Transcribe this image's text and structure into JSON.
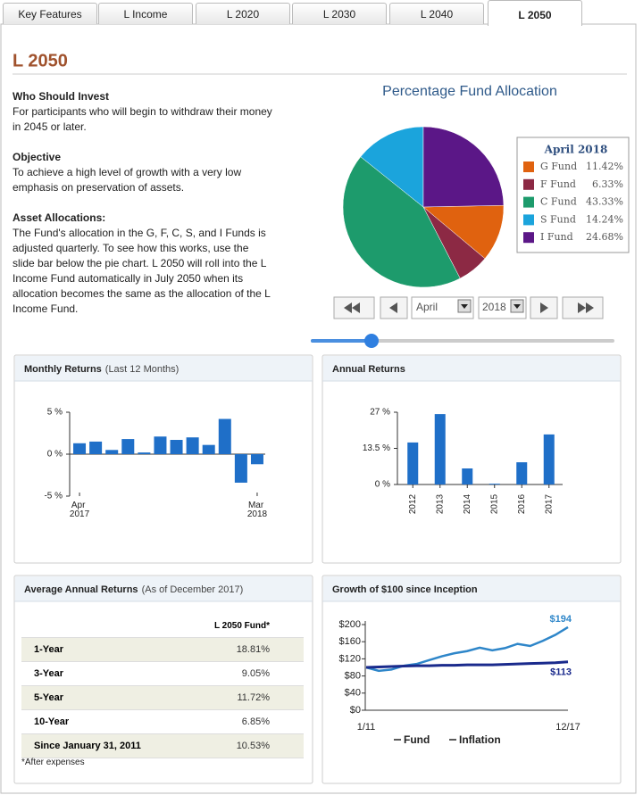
{
  "tabs": [
    "Key Features",
    "L Income",
    "L 2020",
    "L 2030",
    "L 2040",
    "L 2050"
  ],
  "page_title": "L 2050",
  "sections": [
    {
      "heading": "Who Should Invest",
      "text": "For participants who will begin to withdraw their money in 2045 or later."
    },
    {
      "heading": "Objective",
      "text": "To achieve a high level of growth with a very low emphasis on preservation of assets."
    },
    {
      "heading": "Asset Allocations:",
      "text": "The Fund's allocation in the G, F, C, S, and I Funds is adjusted quarterly. To see how this works, use the slide bar below the pie chart. L 2050 will roll into the L Income Fund automatically in July 2050 when its allocation becomes the same as the allocation of the L Income Fund."
    }
  ],
  "controls": {
    "month": "April",
    "year": "2018"
  },
  "chart_data": [
    {
      "type": "pie",
      "title": "Percentage Fund Allocation",
      "legend_title": "April 2018",
      "categories": [
        "G Fund",
        "F Fund",
        "C Fund",
        "S Fund",
        "I Fund"
      ],
      "values": [
        11.42,
        6.33,
        43.33,
        14.24,
        24.68
      ],
      "value_labels": [
        "11.42%",
        "6.33%",
        "43.33%",
        "14.24%",
        "24.68%"
      ],
      "colors": [
        "#e0620f",
        "#8c2944",
        "#1d9b6c",
        "#1ba4dc",
        "#5b1787"
      ]
    },
    {
      "type": "bar",
      "title": "Monthly Returns",
      "subtitle": "(Last 12 Months)",
      "categories": [
        "Apr 2017",
        null,
        null,
        null,
        null,
        null,
        null,
        null,
        null,
        null,
        null,
        "Mar 2018"
      ],
      "values": [
        1.3,
        1.5,
        0.5,
        1.8,
        0.2,
        2.1,
        1.7,
        2.0,
        1.1,
        4.2,
        -3.4,
        -1.2
      ],
      "color": "#1f6fc8",
      "ylim": [
        -5,
        5
      ],
      "yticks": [
        {
          "value": -5,
          "label": "-5 %"
        },
        {
          "value": 0,
          "label": "0 %"
        },
        {
          "value": 5,
          "label": "5 %"
        }
      ]
    },
    {
      "type": "bar",
      "title": "Annual Returns",
      "categories": [
        "2012",
        "2013",
        "2014",
        "2015",
        "2016",
        "2017"
      ],
      "values": [
        15.7,
        26.3,
        6.0,
        0.3,
        8.3,
        18.7
      ],
      "color": "#1f6fc8",
      "ylim": [
        0,
        27
      ],
      "yticks": [
        {
          "value": 0,
          "label": "0 %"
        },
        {
          "value": 13.5,
          "label": "13.5 %"
        },
        {
          "value": 27,
          "label": "27 %"
        }
      ]
    },
    {
      "type": "line",
      "title": "Growth of $100 since Inception",
      "categories": [
        "1/11",
        null,
        null,
        null,
        null,
        null,
        null,
        null,
        null,
        null,
        null,
        null,
        null,
        null,
        null,
        null,
        "12/17"
      ],
      "ylim": [
        0,
        200
      ],
      "yticks": [
        {
          "value": 0,
          "label": "$0"
        },
        {
          "value": 40,
          "label": "$40"
        },
        {
          "value": 80,
          "label": "$80"
        },
        {
          "value": 120,
          "label": "$120"
        },
        {
          "value": 160,
          "label": "$160"
        },
        {
          "value": 200,
          "label": "$200"
        }
      ],
      "series": [
        {
          "name": "Fund",
          "color": "#2e86c9",
          "values": [
            100,
            92,
            95,
            104,
            108,
            117,
            126,
            133,
            138,
            146,
            140,
            145,
            155,
            150,
            162,
            176,
            194
          ],
          "value_labels": [
            null,
            null,
            null,
            null,
            null,
            null,
            null,
            null,
            null,
            null,
            null,
            null,
            null,
            null,
            null,
            null,
            "$194"
          ]
        },
        {
          "name": "Inflation",
          "color": "#1a2a8c",
          "values": [
            100,
            101,
            102,
            103,
            104,
            104,
            105,
            105,
            106,
            106,
            106,
            107,
            108,
            109,
            110,
            111,
            113
          ],
          "value_labels": [
            null,
            null,
            null,
            null,
            null,
            null,
            null,
            null,
            null,
            null,
            null,
            null,
            null,
            null,
            null,
            null,
            "$113"
          ]
        }
      ]
    }
  ],
  "table": {
    "title": "Average Annual Returns",
    "subtitle": "(As of December 2017)",
    "columns": [
      "L 2050 Fund*"
    ],
    "rows": [
      [
        "1-Year",
        "18.81%"
      ],
      [
        "3-Year",
        "9.05%"
      ],
      [
        "5-Year",
        "11.72%"
      ],
      [
        "10-Year",
        "6.85%"
      ],
      [
        "Since January 31, 2011",
        "10.53%"
      ]
    ],
    "footnote": "*After expenses"
  }
}
